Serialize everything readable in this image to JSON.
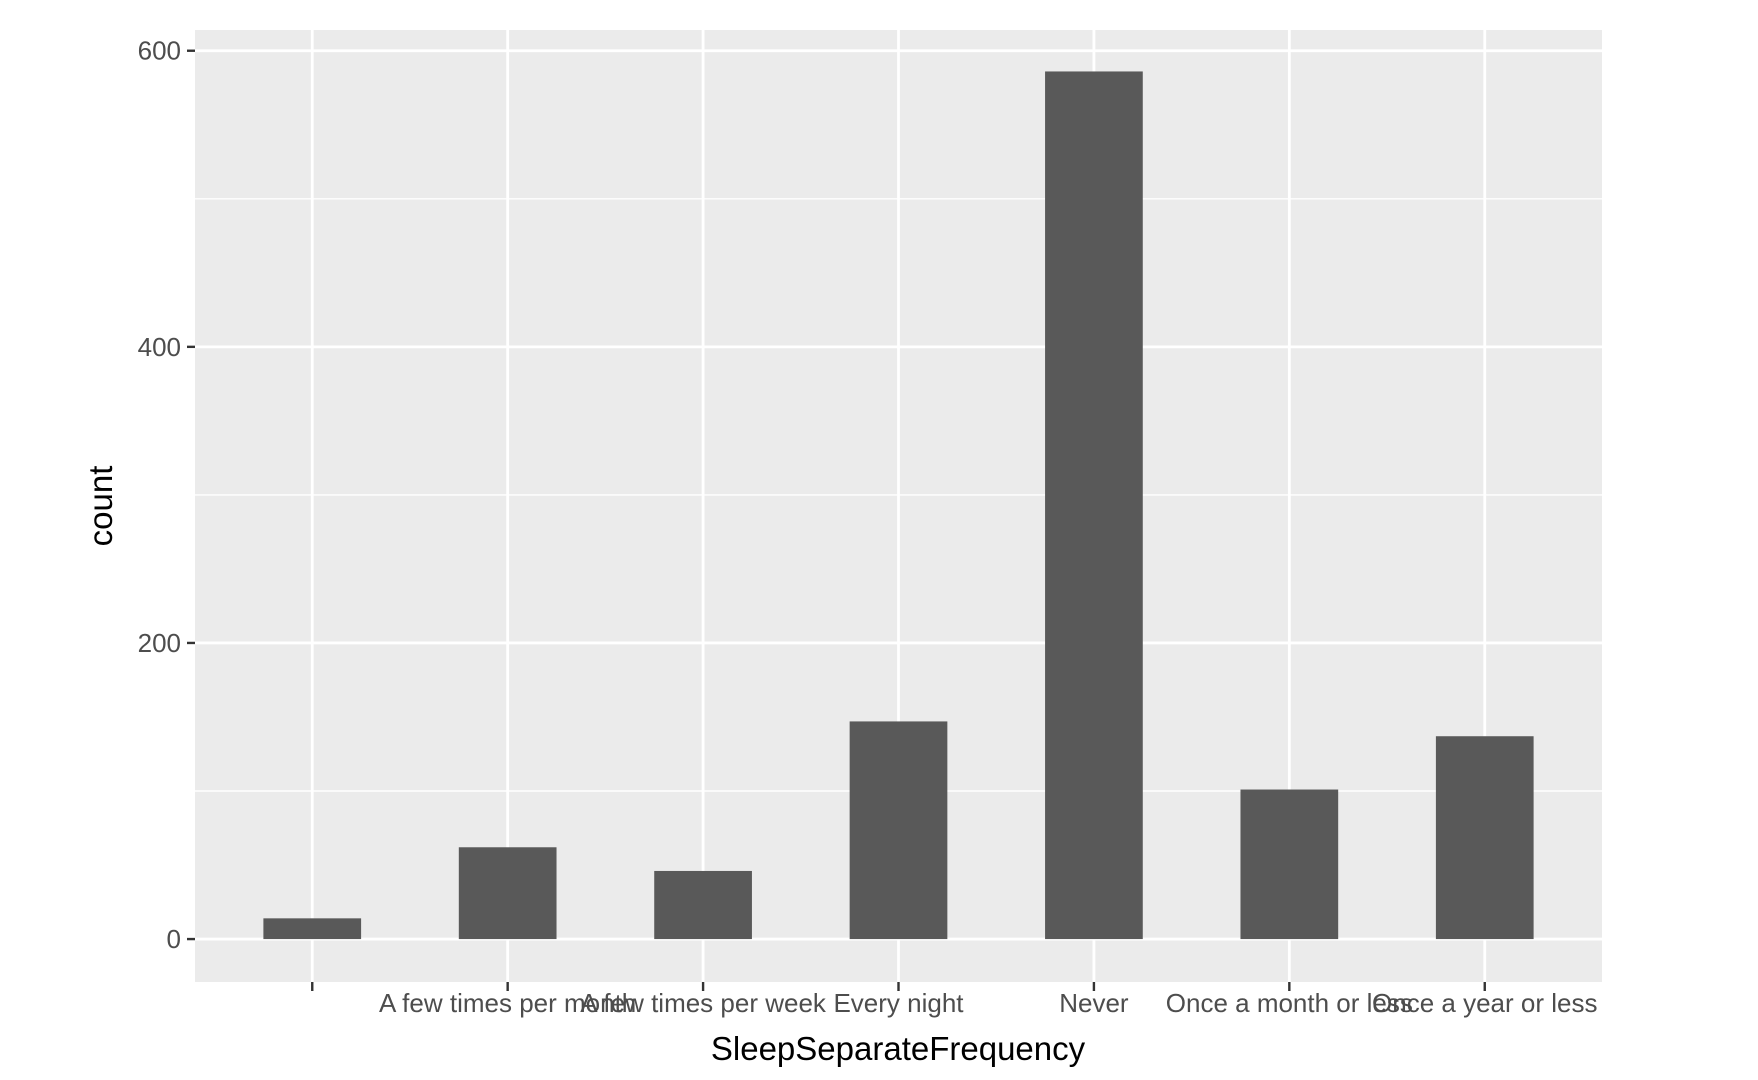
{
  "chart_data": {
    "type": "bar",
    "title": "",
    "xlabel": "SleepSeparateFrequency",
    "ylabel": "count",
    "categories": [
      "",
      "A few times per month",
      "A few times per week",
      "Every night",
      "Never",
      "Once a month or less",
      "Once a year or less"
    ],
    "values": [
      14,
      62,
      46,
      147,
      586,
      101,
      137
    ],
    "ylim": [
      -29,
      614
    ],
    "yticks": [
      0,
      200,
      400,
      600
    ],
    "ytick_labels": [
      "0",
      "200",
      "400",
      "600"
    ],
    "grid": true,
    "legend": "none",
    "colors": {
      "bar": "#595959",
      "panel": "#ebebeb",
      "grid": "#ffffff",
      "tick": "#333333",
      "tick_text": "#4d4d4d"
    }
  }
}
